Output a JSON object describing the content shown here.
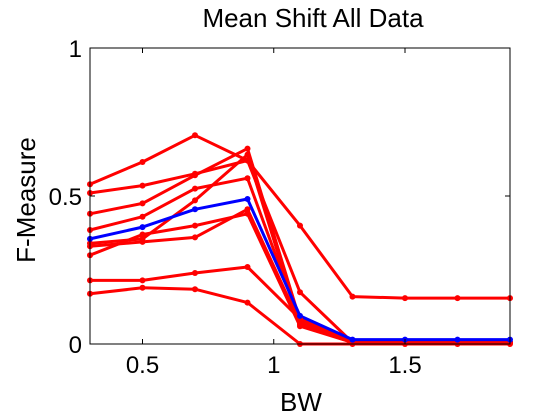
{
  "chart_data": {
    "type": "line",
    "title": "Mean Shift All Data",
    "xlabel": "BW",
    "ylabel": "F-Measure",
    "xlim": [
      0.3,
      1.9
    ],
    "ylim": [
      0,
      1
    ],
    "x_ticks": [
      "0.5",
      "1",
      "1.5"
    ],
    "y_ticks": [
      "0",
      "0.5",
      "1"
    ],
    "grid": false,
    "legend": false,
    "x": [
      0.3,
      0.5,
      0.7,
      0.9,
      1.1,
      1.3,
      1.5,
      1.7,
      1.9
    ],
    "series": [
      {
        "color": "#ff0000",
        "values": [
          0.54,
          0.615,
          0.705,
          0.62,
          0.4,
          0.16,
          0.155,
          0.155,
          0.155
        ]
      },
      {
        "color": "#ff0000",
        "values": [
          0.51,
          0.535,
          0.575,
          0.62,
          0.175,
          0.005,
          0.005,
          0.005,
          0.005
        ]
      },
      {
        "color": "#ff0000",
        "values": [
          0.44,
          0.475,
          0.57,
          0.66,
          0.08,
          0.005,
          0.005,
          0.005,
          0.005
        ]
      },
      {
        "color": "#ff0000",
        "values": [
          0.385,
          0.43,
          0.525,
          0.56,
          0.075,
          0.005,
          0.005,
          0.005,
          0.005
        ]
      },
      {
        "color": "#ff0000",
        "values": [
          0.34,
          0.355,
          0.485,
          0.64,
          0.065,
          0.005,
          0.005,
          0.005,
          0.005
        ]
      },
      {
        "color": "#ff0000",
        "values": [
          0.33,
          0.345,
          0.36,
          0.455,
          0.07,
          0.005,
          0.005,
          0.005,
          0.005
        ]
      },
      {
        "color": "#ff0000",
        "values": [
          0.3,
          0.37,
          0.4,
          0.44,
          0.06,
          0.005,
          0.005,
          0.005,
          0.005
        ]
      },
      {
        "color": "#ff0000",
        "values": [
          0.215,
          0.215,
          0.24,
          0.26,
          0.085,
          0.005,
          0.005,
          0.005,
          0.005
        ]
      },
      {
        "color": "#ff0000",
        "values": [
          0.17,
          0.19,
          0.185,
          0.14,
          0.0,
          0.0,
          0.0,
          0.0,
          0.0
        ]
      },
      {
        "color": "#0000ff",
        "values": [
          0.355,
          0.395,
          0.455,
          0.49,
          0.095,
          0.015,
          0.015,
          0.015,
          0.015
        ]
      }
    ]
  }
}
